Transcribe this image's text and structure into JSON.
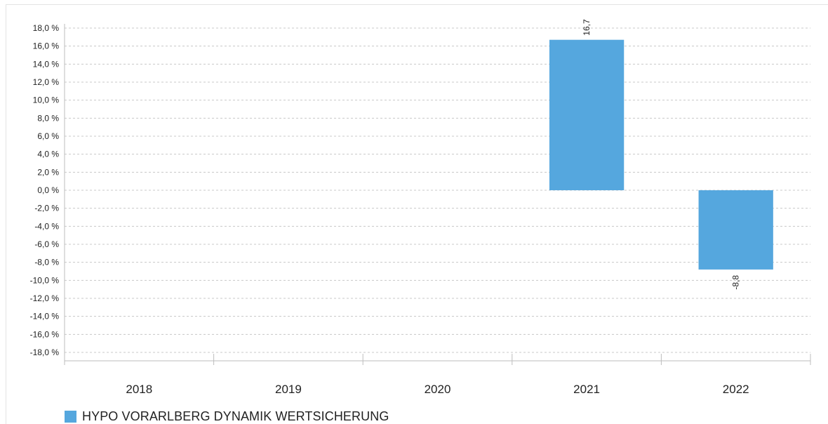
{
  "chart_data": {
    "type": "bar",
    "categories": [
      "2018",
      "2019",
      "2020",
      "2021",
      "2022"
    ],
    "series": [
      {
        "name": "HYPO VORARLBERG DYNAMIK WERTSICHERUNG",
        "values": [
          null,
          null,
          null,
          16.7,
          -8.8
        ],
        "color": "#55a7de"
      }
    ],
    "data_labels": [
      "",
      "",
      "",
      "16,7",
      "-8,8"
    ],
    "title": "",
    "xlabel": "",
    "ylabel": "",
    "ylim": [
      -18,
      18
    ],
    "yticks": [
      18,
      16,
      14,
      12,
      10,
      8,
      6,
      4,
      2,
      0,
      -2,
      -4,
      -6,
      -8,
      -10,
      -12,
      -14,
      -16,
      -18
    ],
    "ytick_labels": [
      "18,0 %",
      "16,0 %",
      "14,0 %",
      "12,0 %",
      "10,0 %",
      "8,0 %",
      "6,0 %",
      "4,0 %",
      "2,0 %",
      "0,0 %",
      "-2,0 %",
      "-4,0 %",
      "-6,0 %",
      "-8,0 %",
      "-10,0 %",
      "-12,0 %",
      "-14,0 %",
      "-16,0 %",
      "-18,0 %"
    ],
    "grid": true,
    "legend_position": "bottom-left"
  },
  "colors": {
    "bar": "#55a7de",
    "grid": "#c8c8c8",
    "axis": "#bdbdbd",
    "text": "#222222"
  }
}
